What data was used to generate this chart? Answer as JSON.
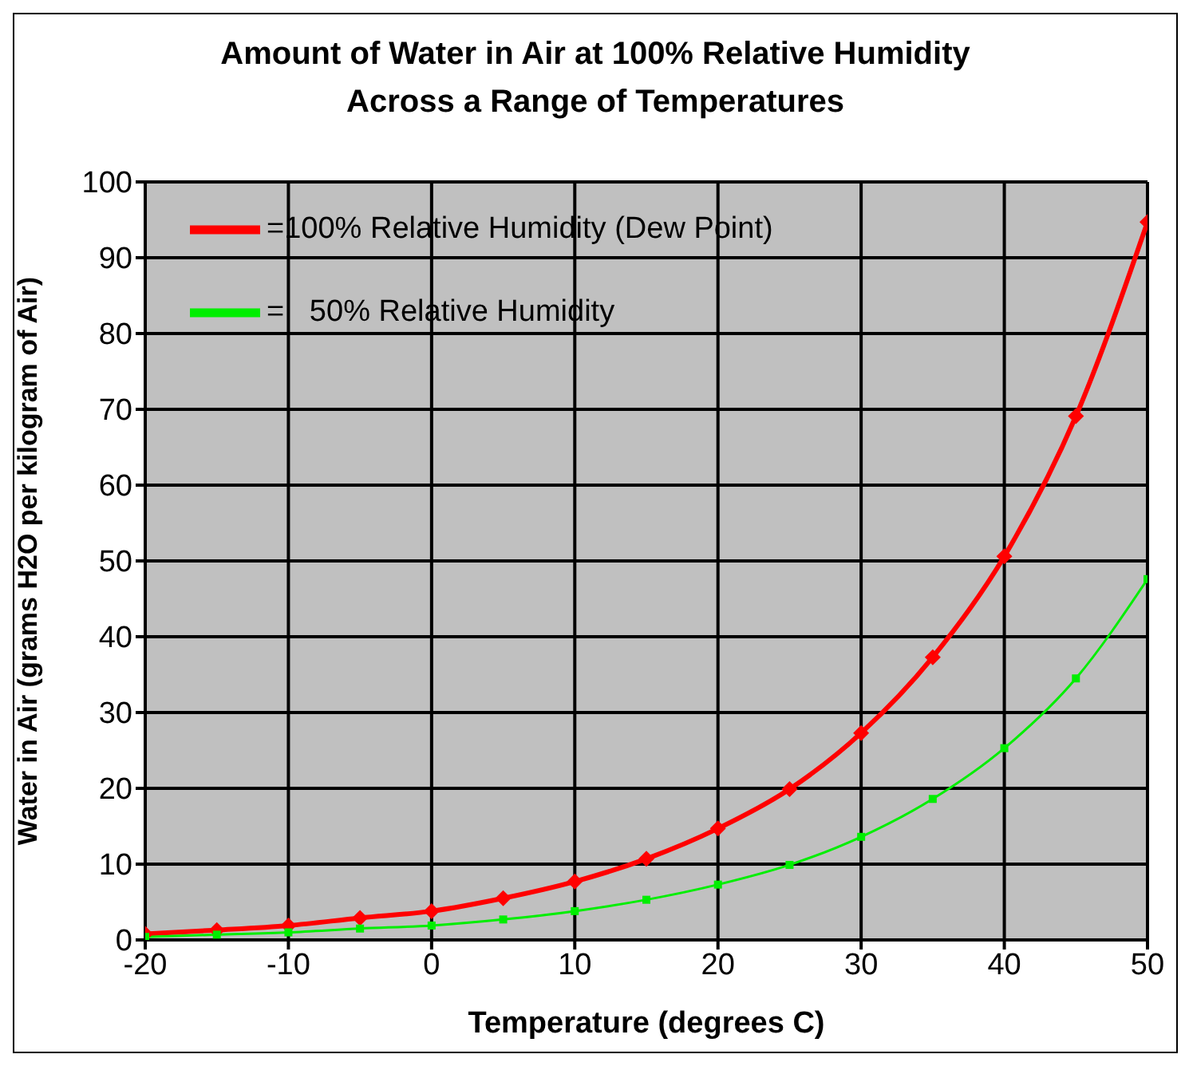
{
  "chart_data": {
    "type": "line",
    "title": "Amount of Water in Air at 100% Relative Humidity\nAcross a Range of Temperatures",
    "xlabel": "Temperature (degrees C)",
    "ylabel": "Water in Air (grams H2O per kilogram of Air)",
    "x": [
      -20,
      -15,
      -10,
      -5,
      0,
      5,
      10,
      15,
      20,
      25,
      30,
      35,
      40,
      45,
      50
    ],
    "series": [
      {
        "name": "=100% Relative Humidity (Dew Point)",
        "color": "#ff0000",
        "marker": "diamond",
        "values": [
          0.8,
          1.3,
          1.9,
          2.9,
          3.8,
          5.5,
          7.7,
          10.7,
          14.7,
          19.9,
          27.3,
          37.3,
          50.6,
          69.1,
          94.7
        ]
      },
      {
        "name": "=   50% Relative Humidity",
        "color": "#00ee00",
        "marker": "square",
        "values": [
          0.4,
          0.7,
          1.0,
          1.5,
          1.9,
          2.7,
          3.8,
          5.3,
          7.3,
          9.9,
          13.6,
          18.6,
          25.3,
          34.5,
          47.6
        ]
      }
    ],
    "xlim": [
      -20,
      50
    ],
    "xticks": [
      -20,
      -10,
      0,
      10,
      20,
      30,
      40,
      50
    ],
    "ylim": [
      0,
      100
    ],
    "yticks": [
      0,
      10,
      20,
      30,
      40,
      50,
      60,
      70,
      80,
      90,
      100
    ],
    "grid": true,
    "legend": "top"
  }
}
